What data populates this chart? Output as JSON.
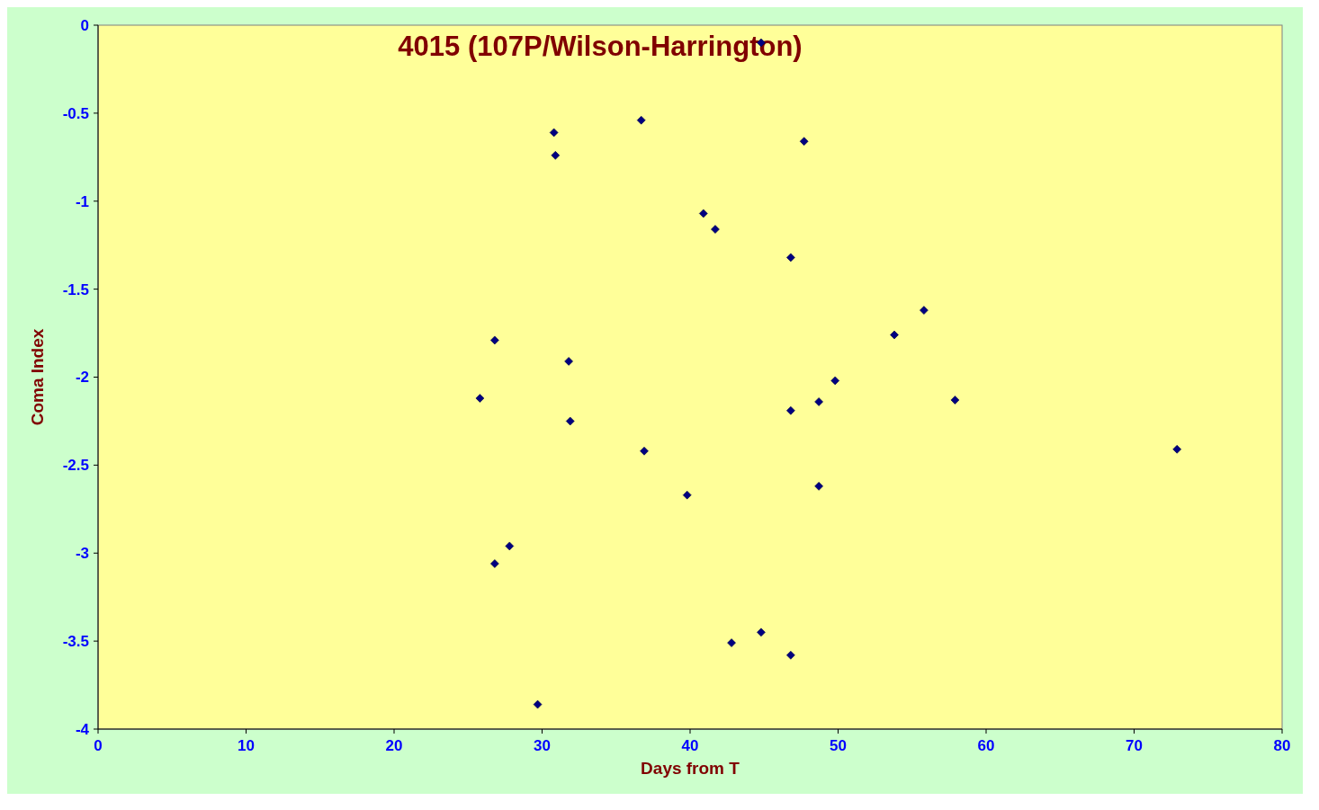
{
  "chart_data": {
    "type": "scatter",
    "title": "4015 (107P/Wilson-Harrington)",
    "xlabel": "Days from  T",
    "ylabel": "Coma Index",
    "x": [
      25.8,
      26.8,
      26.8,
      27.8,
      29.7,
      30.8,
      30.9,
      31.8,
      31.9,
      36.7,
      36.9,
      39.8,
      40.9,
      41.7,
      42.8,
      44.8,
      44.8,
      46.8,
      46.8,
      46.8,
      47.7,
      48.7,
      48.7,
      49.8,
      53.8,
      55.8,
      57.9,
      72.9
    ],
    "series": [
      {
        "color": "#000080",
        "values": [
          -2.12,
          -1.79,
          -3.06,
          -2.96,
          -3.86,
          -0.61,
          -0.74,
          -1.91,
          -2.25,
          -0.54,
          -2.42,
          -2.67,
          -1.07,
          -1.16,
          -3.51,
          -3.45,
          -0.1,
          -1.32,
          -2.19,
          -3.58,
          -0.66,
          -2.14,
          -2.62,
          -2.02,
          -1.76,
          -1.62,
          -2.13,
          -2.41
        ]
      }
    ],
    "xlim": [
      0,
      80
    ],
    "xticks": [
      0,
      10,
      20,
      30,
      40,
      50,
      60,
      70,
      80
    ],
    "ylim": [
      -4,
      0
    ],
    "yticks": [
      -4,
      -3.5,
      -3,
      -2.5,
      -2,
      -1.5,
      -1,
      -0.5,
      0
    ],
    "grid": false,
    "marker": "diamond"
  }
}
